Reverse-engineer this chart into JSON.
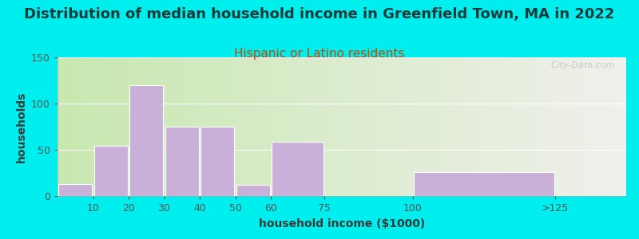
{
  "title": "Distribution of median household income in Greenfield Town, MA in 2022",
  "subtitle": "Hispanic or Latino residents",
  "xlabel": "household income ($1000)",
  "ylabel": "households",
  "bar_lefts": [
    0,
    10,
    20,
    30,
    40,
    50,
    60,
    75,
    100
  ],
  "bar_widths": [
    10,
    10,
    10,
    10,
    10,
    10,
    15,
    25,
    40
  ],
  "values": [
    13,
    54,
    120,
    75,
    75,
    12,
    59,
    0,
    26
  ],
  "xtick_positions": [
    10,
    20,
    30,
    40,
    50,
    60,
    75,
    100,
    140
  ],
  "xtick_labels": [
    "10",
    "20",
    "30",
    "40",
    "50",
    "60",
    "75",
    "100",
    ">125"
  ],
  "bar_color": "#c8b0d8",
  "bar_edge_color": "#ffffff",
  "outer_bg": "#00eeee",
  "title_color": "#1a3a3a",
  "subtitle_color": "#cc4400",
  "axis_label_color": "#3a3a3a",
  "tick_color": "#555555",
  "ylim": [
    0,
    150
  ],
  "yticks": [
    0,
    50,
    100,
    150
  ],
  "xlim": [
    0,
    160
  ],
  "watermark": "  City-Data.com",
  "title_fontsize": 13,
  "subtitle_fontsize": 11,
  "label_fontsize": 9
}
